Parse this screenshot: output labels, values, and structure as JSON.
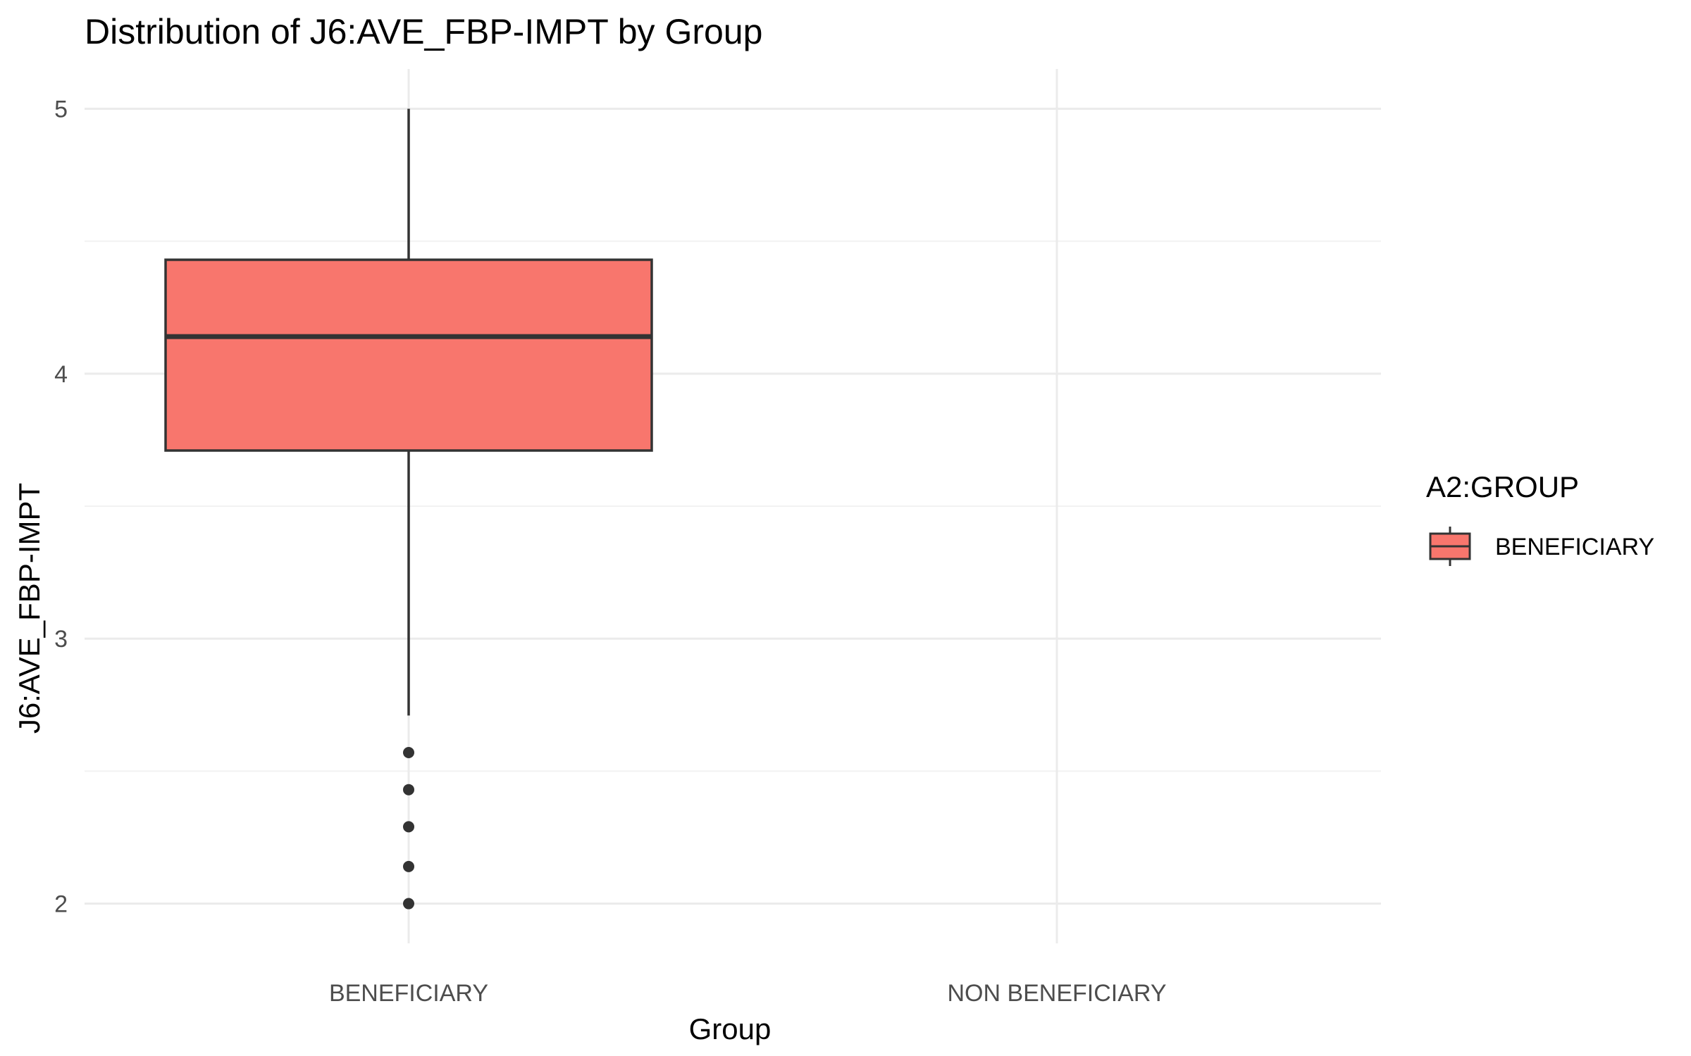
{
  "chart_data": {
    "type": "box",
    "title": "Distribution of J6:AVE_FBP-IMPT by Group",
    "xlabel": "Group",
    "ylabel": "J6:AVE_FBP-IMPT",
    "categories": [
      "BENEFICIARY",
      "NON BENEFICIARY"
    ],
    "ylim": [
      1.85,
      5.15
    ],
    "yticks": [
      2,
      3,
      4,
      5
    ],
    "grid": true,
    "legend": {
      "title": "A2:GROUP",
      "position": "right",
      "entries": [
        {
          "label": "BENEFICIARY",
          "color": "#F8766D"
        }
      ]
    },
    "boxes": [
      {
        "category": "BENEFICIARY",
        "whisker_low": 2.71,
        "q1": 3.71,
        "median": 4.14,
        "q3": 4.43,
        "whisker_high": 5.0,
        "outliers": [
          2.57,
          2.43,
          2.29,
          2.14,
          2.0
        ],
        "fill": "#F8766D"
      }
    ]
  }
}
